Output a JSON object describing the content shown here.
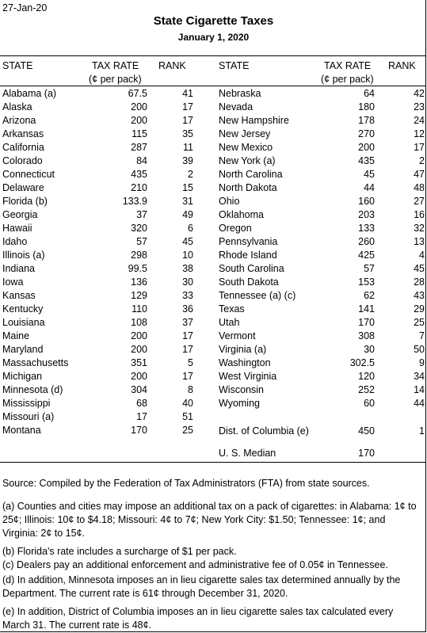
{
  "date": "27-Jan-20",
  "title": "State Cigarette Taxes",
  "subtitle": "January 1, 2020",
  "headers": {
    "state": "STATE",
    "tax_rate": "TAX RATE",
    "tax_unit": "(¢ per pack)",
    "rank": "RANK"
  },
  "left_rows": [
    {
      "state": "Alabama (a)",
      "rate": "67.5",
      "rank": "41"
    },
    {
      "state": "Alaska",
      "rate": "200",
      "rank": "17"
    },
    {
      "state": "Arizona",
      "rate": "200",
      "rank": "17"
    },
    {
      "state": "Arkansas",
      "rate": "115",
      "rank": "35"
    },
    {
      "state": "California",
      "rate": "287",
      "rank": "11"
    },
    {
      "state": "Colorado",
      "rate": "84",
      "rank": "39"
    },
    {
      "state": "Connecticut",
      "rate": "435",
      "rank": "2"
    },
    {
      "state": "Delaware",
      "rate": "210",
      "rank": "15"
    },
    {
      "state": "Florida (b)",
      "rate": "133.9",
      "rank": "31"
    },
    {
      "state": "Georgia",
      "rate": "37",
      "rank": "49"
    },
    {
      "state": "Hawaii",
      "rate": "320",
      "rank": "6"
    },
    {
      "state": "Idaho",
      "rate": "57",
      "rank": "45"
    },
    {
      "state": "Illinois (a)",
      "rate": "298",
      "rank": "10"
    },
    {
      "state": "Indiana",
      "rate": "99.5",
      "rank": "38"
    },
    {
      "state": "Iowa",
      "rate": "136",
      "rank": "30"
    },
    {
      "state": "Kansas",
      "rate": "129",
      "rank": "33"
    },
    {
      "state": "Kentucky",
      "rate": "110",
      "rank": "36"
    },
    {
      "state": "Louisiana",
      "rate": "108",
      "rank": "37"
    },
    {
      "state": "Maine",
      "rate": "200",
      "rank": "17"
    },
    {
      "state": "Maryland",
      "rate": "200",
      "rank": "17"
    },
    {
      "state": "Massachusetts",
      "rate": "351",
      "rank": "5"
    },
    {
      "state": "Michigan",
      "rate": "200",
      "rank": "17"
    },
    {
      "state": "Minnesota (d)",
      "rate": "304",
      "rank": "8"
    },
    {
      "state": "Mississippi",
      "rate": "68",
      "rank": "40"
    },
    {
      "state": "Missouri (a)",
      "rate": "17",
      "rank": "51"
    },
    {
      "state": "Montana",
      "rate": "170",
      "rank": "25"
    }
  ],
  "right_rows": [
    {
      "state": "Nebraska",
      "rate": "64",
      "rank": "42"
    },
    {
      "state": "Nevada",
      "rate": "180",
      "rank": "23"
    },
    {
      "state": "New Hampshire",
      "rate": "178",
      "rank": "24"
    },
    {
      "state": "New Jersey",
      "rate": "270",
      "rank": "12"
    },
    {
      "state": "New Mexico",
      "rate": "200",
      "rank": "17"
    },
    {
      "state": "New York (a)",
      "rate": "435",
      "rank": "2"
    },
    {
      "state": "North Carolina",
      "rate": "45",
      "rank": "47"
    },
    {
      "state": "North Dakota",
      "rate": "44",
      "rank": "48"
    },
    {
      "state": "Ohio",
      "rate": "160",
      "rank": "27"
    },
    {
      "state": "Oklahoma",
      "rate": "203",
      "rank": "16"
    },
    {
      "state": "Oregon",
      "rate": "133",
      "rank": "32"
    },
    {
      "state": "Pennsylvania",
      "rate": "260",
      "rank": "13"
    },
    {
      "state": "Rhode Island",
      "rate": "425",
      "rank": "4"
    },
    {
      "state": "South Carolina",
      "rate": "57",
      "rank": "45"
    },
    {
      "state": "South Dakota",
      "rate": "153",
      "rank": "28"
    },
    {
      "state": "Tennessee (a) (c)",
      "rate": "62",
      "rank": "43"
    },
    {
      "state": "Texas",
      "rate": "141",
      "rank": "29"
    },
    {
      "state": "Utah",
      "rate": "170",
      "rank": "25"
    },
    {
      "state": "Vermont",
      "rate": "308",
      "rank": "7"
    },
    {
      "state": "Virginia (a)",
      "rate": "30",
      "rank": "50"
    },
    {
      "state": "Washington",
      "rate": "302.5",
      "rank": "9"
    },
    {
      "state": "West Virginia",
      "rate": "120",
      "rank": "34"
    },
    {
      "state": "Wisconsin",
      "rate": "252",
      "rank": "14"
    },
    {
      "state": "Wyoming",
      "rate": "60",
      "rank": "44"
    }
  ],
  "dc": {
    "state": "Dist. of Columbia (e)",
    "rate": "450",
    "rank": "1"
  },
  "median": {
    "label": "U. S. Median",
    "rate": "170"
  },
  "source": "Source: Compiled by the Federation of Tax Administrators (FTA) from state sources.",
  "notes": [
    "(a) Counties and cities may impose an additional tax on a pack of cigarettes: in Alabama: 1¢ to 25¢; Illinois: 10¢ to $4.18; Missouri: 4¢ to 7¢; New York City: $1.50; Tennessee: 1¢; and Virginia: 2¢ to 15¢.",
    "(b) Florida's rate includes a surcharge of $1 per pack.",
    "(c) Dealers pay an additional enforcement and administrative fee of 0.05¢ in Tennessee.",
    "(d) In addition, Minnesota imposes an in lieu cigarette sales tax determined annually by the Department. The current rate is 61¢ through December 31, 2020.",
    "(e) In addition, District of Columbia imposes an in lieu cigarette sales tax calculated every March 31. The current rate is 48¢."
  ]
}
